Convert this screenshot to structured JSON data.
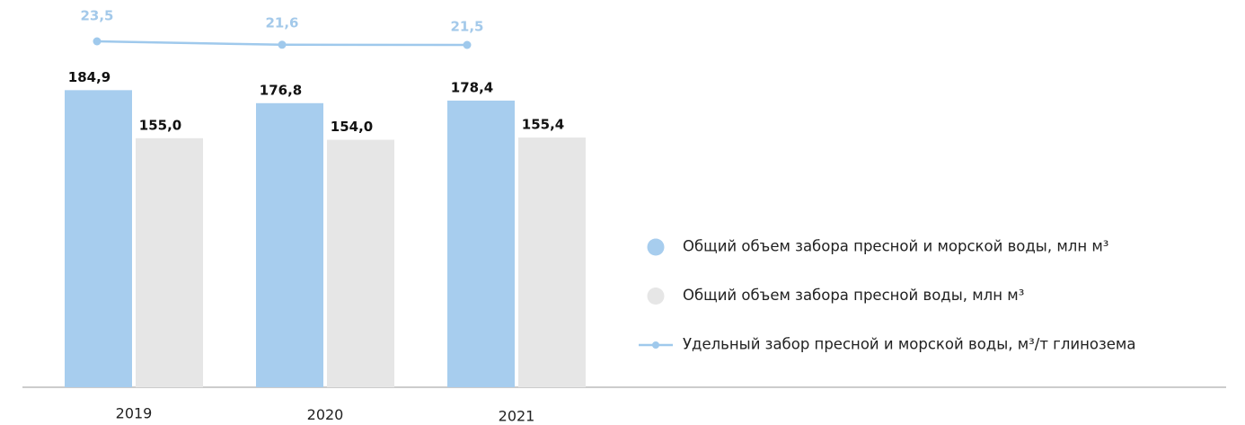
{
  "chart_data": {
    "type": "bar",
    "categories": [
      "2019",
      "2020",
      "2021"
    ],
    "series": [
      {
        "name": "Общий объем забора пресной и морской воды, млн м³",
        "type": "bar",
        "color": "#a7cdee",
        "values": [
          184.9,
          176.8,
          178.4
        ],
        "value_labels": [
          "184,9",
          "176,8",
          "178,4"
        ]
      },
      {
        "name": "Общий объем забора пресной воды, млн м³",
        "type": "bar",
        "color": "#e6e6e6",
        "values": [
          155.0,
          154.0,
          155.4
        ],
        "value_labels": [
          "155,0",
          "154,0",
          "155,4"
        ]
      },
      {
        "name": "Удельный забор пресной и морской воды, м³/т глинозема",
        "type": "line",
        "axis": "y2",
        "color": "#9fc9ec",
        "values": [
          23.5,
          21.6,
          21.5
        ],
        "value_labels": [
          "23,5",
          "21,6",
          "21,5"
        ]
      }
    ],
    "ylim": [
      0,
      241
    ],
    "y2lim": [
      -169,
      46.5
    ],
    "legend": "right"
  }
}
